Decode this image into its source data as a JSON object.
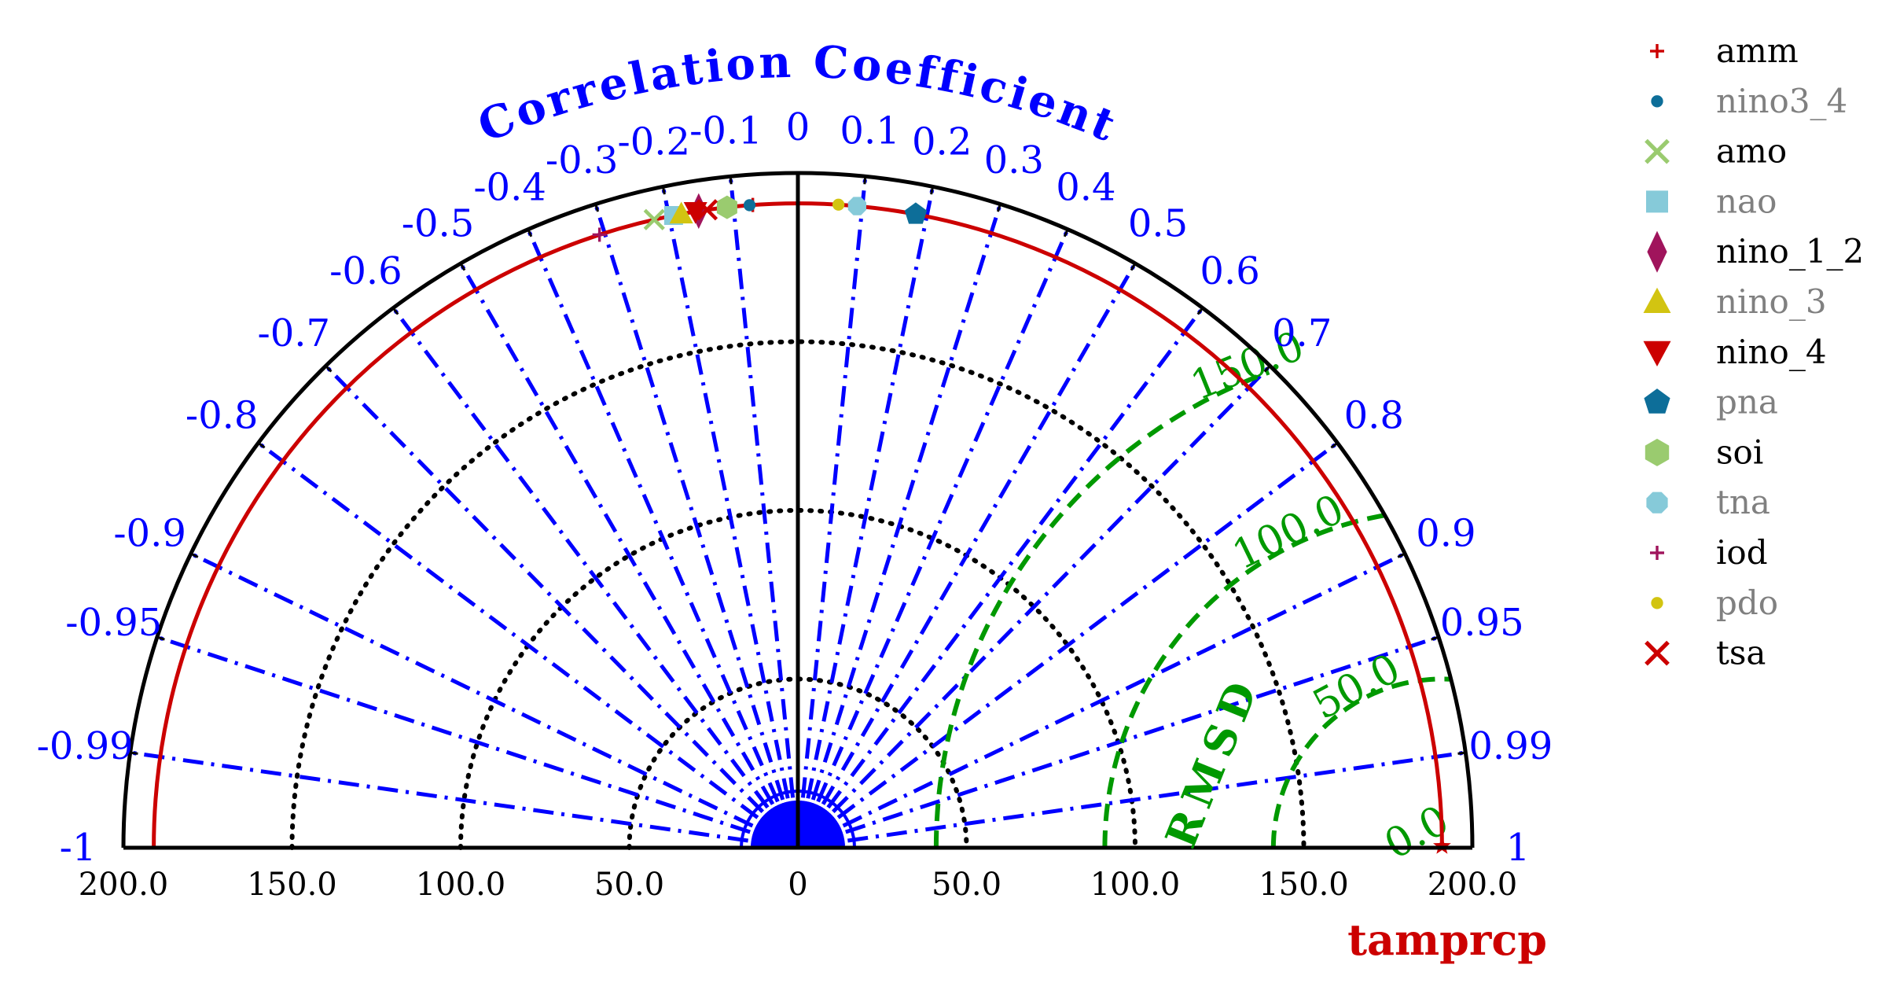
{
  "chart_data": {
    "type": "scatter",
    "subtype": "taylor-diagram-half",
    "title": "",
    "correlation_axis_title": "Correlation Coefficient",
    "rmsd_label": "RMSD",
    "reference_label": "tamprcp",
    "correlation_ticks": [
      {
        "r": -1,
        "label": "-1"
      },
      {
        "r": -0.99,
        "label": "-0.99"
      },
      {
        "r": -0.95,
        "label": "-0.95"
      },
      {
        "r": -0.9,
        "label": "-0.9"
      },
      {
        "r": -0.8,
        "label": "-0.8"
      },
      {
        "r": -0.7,
        "label": "-0.7"
      },
      {
        "r": -0.6,
        "label": "-0.6"
      },
      {
        "r": -0.5,
        "label": "-0.5"
      },
      {
        "r": -0.4,
        "label": "-0.4"
      },
      {
        "r": -0.3,
        "label": "-0.3"
      },
      {
        "r": -0.2,
        "label": "-0.2"
      },
      {
        "r": -0.1,
        "label": "-0.1"
      },
      {
        "r": 0,
        "label": "0"
      },
      {
        "r": 0.1,
        "label": "0.1"
      },
      {
        "r": 0.2,
        "label": "0.2"
      },
      {
        "r": 0.3,
        "label": "0.3"
      },
      {
        "r": 0.4,
        "label": "0.4"
      },
      {
        "r": 0.5,
        "label": "0.5"
      },
      {
        "r": 0.6,
        "label": "0.6"
      },
      {
        "r": 0.7,
        "label": "0.7"
      },
      {
        "r": 0.8,
        "label": "0.8"
      },
      {
        "r": 0.9,
        "label": "0.9"
      },
      {
        "r": 0.95,
        "label": "0.95"
      },
      {
        "r": 0.99,
        "label": "0.99"
      },
      {
        "r": 1,
        "label": "1"
      }
    ],
    "std_ticks": [
      {
        "value": -200,
        "label": "200.0"
      },
      {
        "value": -150,
        "label": "150.0"
      },
      {
        "value": -100,
        "label": "100.0"
      },
      {
        "value": -50,
        "label": "50.0"
      },
      {
        "value": 0,
        "label": "0"
      },
      {
        "value": 50,
        "label": "50.0"
      },
      {
        "value": 100,
        "label": "100.0"
      },
      {
        "value": 150,
        "label": "150.0"
      },
      {
        "value": 200,
        "label": "200.0"
      }
    ],
    "std_max": 200,
    "std_circles": [
      50,
      100,
      150
    ],
    "reference_std": 191,
    "rmsd_contours": [
      {
        "value": 50,
        "label": "50.0"
      },
      {
        "value": 100,
        "label": "100.0"
      },
      {
        "value": 150,
        "label": "150.0"
      }
    ],
    "rmsd_zero_label": "0.0",
    "colors": {
      "axis": "#000000",
      "correlation": "#0000ff",
      "rmsd": "#009900",
      "reference": "#cc0000",
      "legend_alt_text": "#808080"
    },
    "series": [
      {
        "name": "amm",
        "marker": "plus",
        "color": "#cc0000",
        "std": 191,
        "corr": -0.07
      },
      {
        "name": "nino3_4",
        "marker": "circle",
        "color": "#0d6e99",
        "std": 191,
        "corr": -0.075
      },
      {
        "name": "amo",
        "marker": "x",
        "color": "#9acb6f",
        "std": 191,
        "corr": -0.223
      },
      {
        "name": "nao",
        "marker": "square",
        "color": "#86cad9",
        "std": 191,
        "corr": -0.193
      },
      {
        "name": "nino_1_2",
        "marker": "diamond",
        "color": "#a0145c",
        "std": 191,
        "corr": -0.154
      },
      {
        "name": "nino_3",
        "marker": "triangle-up",
        "color": "#d2c411",
        "std": 191,
        "corr": -0.181
      },
      {
        "name": "nino_4",
        "marker": "triangle-down",
        "color": "#cc0000",
        "std": 191,
        "corr": -0.159
      },
      {
        "name": "pna",
        "marker": "pentagon",
        "color": "#0d6e99",
        "std": 191,
        "corr": 0.183
      },
      {
        "name": "soi",
        "marker": "hexagon",
        "color": "#9acb6f",
        "std": 191,
        "corr": -0.11
      },
      {
        "name": "tna",
        "marker": "octagon",
        "color": "#86cad9",
        "std": 191,
        "corr": 0.092
      },
      {
        "name": "iod",
        "marker": "plus",
        "color": "#a0145c",
        "std": 191,
        "corr": -0.308
      },
      {
        "name": "pdo",
        "marker": "circle",
        "color": "#d2c411",
        "std": 191,
        "corr": 0.063
      },
      {
        "name": "tsa",
        "marker": "x",
        "color": "#cc0000",
        "std": 191,
        "corr": -0.141
      }
    ],
    "legend": {
      "placement": "outside-right",
      "entries": [
        {
          "label": "amm",
          "faded": false
        },
        {
          "label": "nino3_4",
          "faded": true
        },
        {
          "label": "amo",
          "faded": false
        },
        {
          "label": "nao",
          "faded": true
        },
        {
          "label": "nino_1_2",
          "faded": false
        },
        {
          "label": "nino_3",
          "faded": true
        },
        {
          "label": "nino_4",
          "faded": false
        },
        {
          "label": "pna",
          "faded": true
        },
        {
          "label": "soi",
          "faded": false
        },
        {
          "label": "tna",
          "faded": true
        },
        {
          "label": "iod",
          "faded": false
        },
        {
          "label": "pdo",
          "faded": true
        },
        {
          "label": "tsa",
          "faded": false
        }
      ]
    },
    "grid": true
  }
}
